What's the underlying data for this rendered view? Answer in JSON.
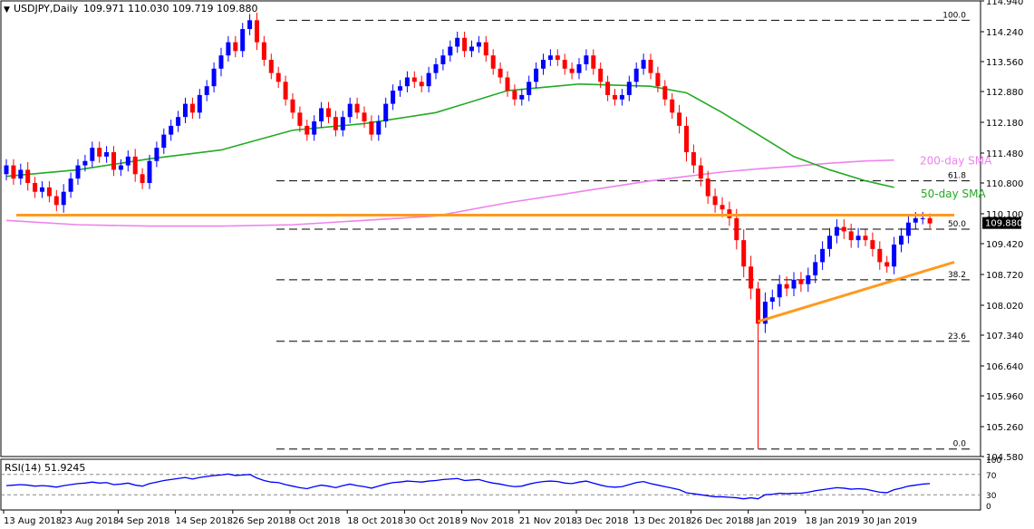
{
  "header": {
    "symbol": "USDJPY,Daily",
    "ohlc": "109.971 110.030 109.719 109.880"
  },
  "rsi": {
    "label": "RSI(14) 51.9245",
    "levels": [
      70,
      30
    ],
    "ylim": [
      0,
      100
    ],
    "tick_labels": [
      "100",
      "70",
      "30",
      "0"
    ]
  },
  "colors": {
    "up": "#0000ff",
    "down": "#ff0000",
    "sma50": "#22aa22",
    "sma200": "#ee82ee",
    "trendline": "#ff9a1e",
    "rsi_line": "#0000ff",
    "last_price_label": "#000000"
  },
  "chart_data": {
    "type": "candlestick",
    "ylim": [
      104.58,
      114.94
    ],
    "y_ticks": [
      114.94,
      114.24,
      113.56,
      112.88,
      112.18,
      111.48,
      110.8,
      110.1,
      109.42,
      108.72,
      108.02,
      107.34,
      106.64,
      105.96,
      105.26,
      104.58
    ],
    "y_tick_labels": [
      "114.940",
      "114.240",
      "113.560",
      "112.880",
      "112.180",
      "111.480",
      "110.800",
      "110.100",
      "109.420",
      "108.720",
      "108.020",
      "107.340",
      "106.640",
      "105.960",
      "105.260",
      "104.580"
    ],
    "last_price": 109.88,
    "last_price_label": "109.880",
    "x_tick_labels": [
      {
        "label": "13 Aug 2018",
        "index": 0
      },
      {
        "label": "23 Aug 2018",
        "index": 8
      },
      {
        "label": "4 Sep 2018",
        "index": 16
      },
      {
        "label": "14 Sep 2018",
        "index": 24
      },
      {
        "label": "26 Sep 2018",
        "index": 32
      },
      {
        "label": "8 Oct 2018",
        "index": 40
      },
      {
        "label": "18 Oct 2018",
        "index": 48
      },
      {
        "label": "30 Oct 2018",
        "index": 56
      },
      {
        "label": "9 Nov 2018",
        "index": 64
      },
      {
        "label": "21 Nov 2018",
        "index": 72
      },
      {
        "label": "3 Dec 2018",
        "index": 80
      },
      {
        "label": "13 Dec 2018",
        "index": 88
      },
      {
        "label": "26 Dec 2018",
        "index": 96
      },
      {
        "label": "8 Jan 2019",
        "index": 104
      },
      {
        "label": "18 Jan 2019",
        "index": 112
      },
      {
        "label": "30 Jan 2019",
        "index": 120
      }
    ],
    "close": [
      111.2,
      110.9,
      111.1,
      110.8,
      110.6,
      110.7,
      110.5,
      110.3,
      110.6,
      110.9,
      111.2,
      111.3,
      111.6,
      111.4,
      111.5,
      111.1,
      111.2,
      111.4,
      111.0,
      110.8,
      111.3,
      111.6,
      111.9,
      112.1,
      112.3,
      112.6,
      112.4,
      112.8,
      113.0,
      113.4,
      113.7,
      114.0,
      113.8,
      114.3,
      114.5,
      114.0,
      113.6,
      113.3,
      113.1,
      112.7,
      112.4,
      112.1,
      111.9,
      112.2,
      112.5,
      112.3,
      112.0,
      112.3,
      112.6,
      112.4,
      112.2,
      111.9,
      112.2,
      112.6,
      112.9,
      113.0,
      113.2,
      113.1,
      113.0,
      113.3,
      113.5,
      113.7,
      113.9,
      114.1,
      113.8,
      113.9,
      114.0,
      113.7,
      113.4,
      113.2,
      112.9,
      112.7,
      112.8,
      113.1,
      113.4,
      113.6,
      113.7,
      113.6,
      113.4,
      113.3,
      113.5,
      113.7,
      113.4,
      113.1,
      112.8,
      112.7,
      112.8,
      113.1,
      113.4,
      113.6,
      113.3,
      113.0,
      112.7,
      112.4,
      112.1,
      111.5,
      111.2,
      110.9,
      110.5,
      110.3,
      110.2,
      110.0,
      109.5,
      108.9,
      108.4,
      107.6,
      108.1,
      108.2,
      108.5,
      108.4,
      108.6,
      108.5,
      108.7,
      109.0,
      109.3,
      109.6,
      109.8,
      109.7,
      109.5,
      109.6,
      109.5,
      109.3,
      109.0,
      108.9,
      109.4,
      109.6,
      109.9,
      110.0,
      110.0,
      109.88
    ],
    "range": [
      0.4,
      0.4,
      0.4,
      0.5,
      0.4,
      0.4,
      0.4,
      0.4,
      0.5,
      0.4,
      0.4,
      0.4,
      0.4,
      0.4,
      0.4,
      0.4,
      0.4,
      0.4,
      0.5,
      0.4,
      0.4,
      0.4,
      0.4,
      0.4,
      0.4,
      0.4,
      0.4,
      0.4,
      0.4,
      0.4,
      0.5,
      0.4,
      0.4,
      0.4,
      0.4,
      0.5,
      0.4,
      0.4,
      0.4,
      0.4,
      0.4,
      0.4,
      0.4,
      0.4,
      0.4,
      0.4,
      0.4,
      0.4,
      0.4,
      0.4,
      0.4,
      0.4,
      0.4,
      0.4,
      0.4,
      0.4,
      0.4,
      0.4,
      0.4,
      0.4,
      0.4,
      0.4,
      0.4,
      0.4,
      0.4,
      0.4,
      0.4,
      0.4,
      0.4,
      0.4,
      0.4,
      0.4,
      0.4,
      0.4,
      0.4,
      0.4,
      0.4,
      0.4,
      0.4,
      0.4,
      0.4,
      0.4,
      0.4,
      0.4,
      0.4,
      0.4,
      0.4,
      0.4,
      0.4,
      0.4,
      0.4,
      0.4,
      0.4,
      0.4,
      0.5,
      0.6,
      0.5,
      0.5,
      0.5,
      0.5,
      0.5,
      0.5,
      0.6,
      0.7,
      0.7,
      3.4,
      0.6,
      0.5,
      0.6,
      0.5,
      0.5,
      0.5,
      0.5,
      0.5,
      0.5,
      0.5,
      0.5,
      0.5,
      0.5,
      0.5,
      0.4,
      0.5,
      0.5,
      0.4,
      0.5,
      0.5,
      0.5,
      0.4,
      0.4,
      0.31
    ],
    "sma50": {
      "label": "50-day SMA",
      "x": [
        0,
        10,
        20,
        30,
        40,
        50,
        60,
        70,
        80,
        90,
        95,
        100,
        105,
        110,
        115,
        120,
        124
      ],
      "y": [
        110.95,
        111.1,
        111.35,
        111.55,
        112.0,
        112.15,
        112.4,
        112.9,
        113.05,
        113.0,
        112.85,
        112.4,
        111.9,
        111.4,
        111.1,
        110.85,
        110.7
      ]
    },
    "sma200": {
      "label": "200-day SMA",
      "x": [
        0,
        10,
        20,
        30,
        40,
        50,
        60,
        70,
        80,
        90,
        95,
        100,
        105,
        110,
        115,
        120,
        124
      ],
      "y": [
        109.95,
        109.85,
        109.82,
        109.82,
        109.85,
        109.95,
        110.05,
        110.35,
        110.6,
        110.85,
        110.95,
        111.05,
        111.12,
        111.18,
        111.25,
        111.3,
        111.32
      ]
    },
    "horizontal_level": {
      "from": 0,
      "to": 129,
      "y": 110.07
    },
    "support_trendline": {
      "x": [
        105,
        129
      ],
      "y": [
        107.65,
        109.0
      ]
    },
    "fibonacci": [
      {
        "label": "100.0",
        "value": 114.5
      },
      {
        "label": "61.8",
        "value": 110.85
      },
      {
        "label": "50.0",
        "value": 109.75
      },
      {
        "label": "38.2",
        "value": 108.6
      },
      {
        "label": "23.6",
        "value": 107.2
      },
      {
        "label": "0.0",
        "value": 104.75
      }
    ],
    "annotations": [
      {
        "label": "200-day SMA",
        "index": 124,
        "value": 111.3
      },
      {
        "label": "50-day SMA",
        "index": 125,
        "value": 110.55
      }
    ],
    "rsi_values": [
      48,
      49,
      50,
      49,
      47,
      48,
      47,
      45,
      48,
      50,
      52,
      53,
      55,
      53,
      54,
      50,
      51,
      53,
      49,
      47,
      52,
      55,
      58,
      60,
      62,
      64,
      61,
      64,
      66,
      68,
      69,
      71,
      68,
      69,
      70,
      63,
      58,
      55,
      54,
      50,
      47,
      44,
      42,
      46,
      49,
      47,
      44,
      48,
      51,
      48,
      46,
      43,
      47,
      51,
      54,
      55,
      57,
      56,
      55,
      57,
      58,
      60,
      61,
      62,
      58,
      59,
      60,
      56,
      53,
      51,
      48,
      46,
      47,
      51,
      54,
      56,
      57,
      56,
      53,
      52,
      55,
      57,
      53,
      49,
      46,
      45,
      46,
      50,
      54,
      56,
      52,
      49,
      46,
      43,
      40,
      34,
      32,
      30,
      28,
      26,
      26,
      25,
      24,
      22,
      24,
      22,
      30,
      31,
      33,
      32,
      33,
      33,
      35,
      38,
      40,
      42,
      44,
      43,
      41,
      42,
      41,
      38,
      35,
      34,
      40,
      43,
      47,
      49,
      51,
      52
    ]
  }
}
